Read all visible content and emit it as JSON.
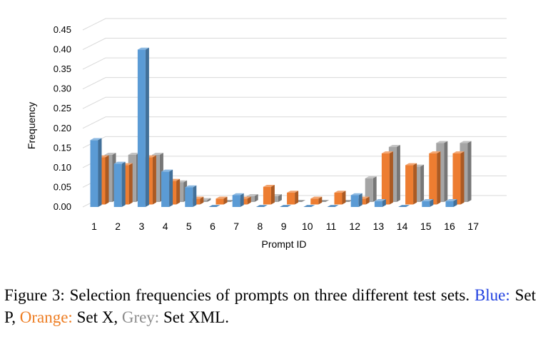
{
  "chart_data": {
    "type": "bar",
    "style": "3d-clustered",
    "ylabel": "Frequency",
    "xlabel": "Prompt ID",
    "categories": [
      "1",
      "2",
      "3",
      "4",
      "5",
      "6",
      "7",
      "8",
      "9",
      "10",
      "11",
      "12",
      "13",
      "14",
      "15",
      "16",
      "17"
    ],
    "yticks": [
      "0.00",
      "0.05",
      "0.10",
      "0.15",
      "0.20",
      "0.25",
      "0.30",
      "0.35",
      "0.40",
      "0.45"
    ],
    "ylim": [
      0,
      0.45
    ],
    "grid": true,
    "legend": "none",
    "series": [
      {
        "color": "#5b9bd5",
        "values": [
          0.17,
          0.11,
          0.4,
          0.09,
          0.05,
          0.0,
          0.03,
          0.0,
          0.0,
          0.0,
          0.0,
          0.03,
          0.015,
          0.0,
          0.015,
          0.015,
          null
        ]
      },
      {
        "color": "#ed7d31",
        "values": [
          0.12,
          0.1,
          0.12,
          0.06,
          0.015,
          0.015,
          0.015,
          0.045,
          0.03,
          0.015,
          0.03,
          0.015,
          0.13,
          0.1,
          0.13,
          0.13,
          null
        ]
      },
      {
        "color": "#a5a5a5",
        "values": [
          0.12,
          0.12,
          0.12,
          0.05,
          0.005,
          0.0,
          0.015,
          0.015,
          0.0,
          0.0,
          0.0,
          0.06,
          0.14,
          0.09,
          0.15,
          0.15,
          null
        ]
      }
    ]
  },
  "caption": {
    "prefix": "Figure 3:  Selection frequencies of prompts on three different test sets. ",
    "blue_label": "Blue:",
    "blue_set": " Set P, ",
    "orange_label": "Orange:",
    "orange_set": " Set X, ",
    "grey_label": "Grey:",
    "grey_set": " Set XML."
  }
}
